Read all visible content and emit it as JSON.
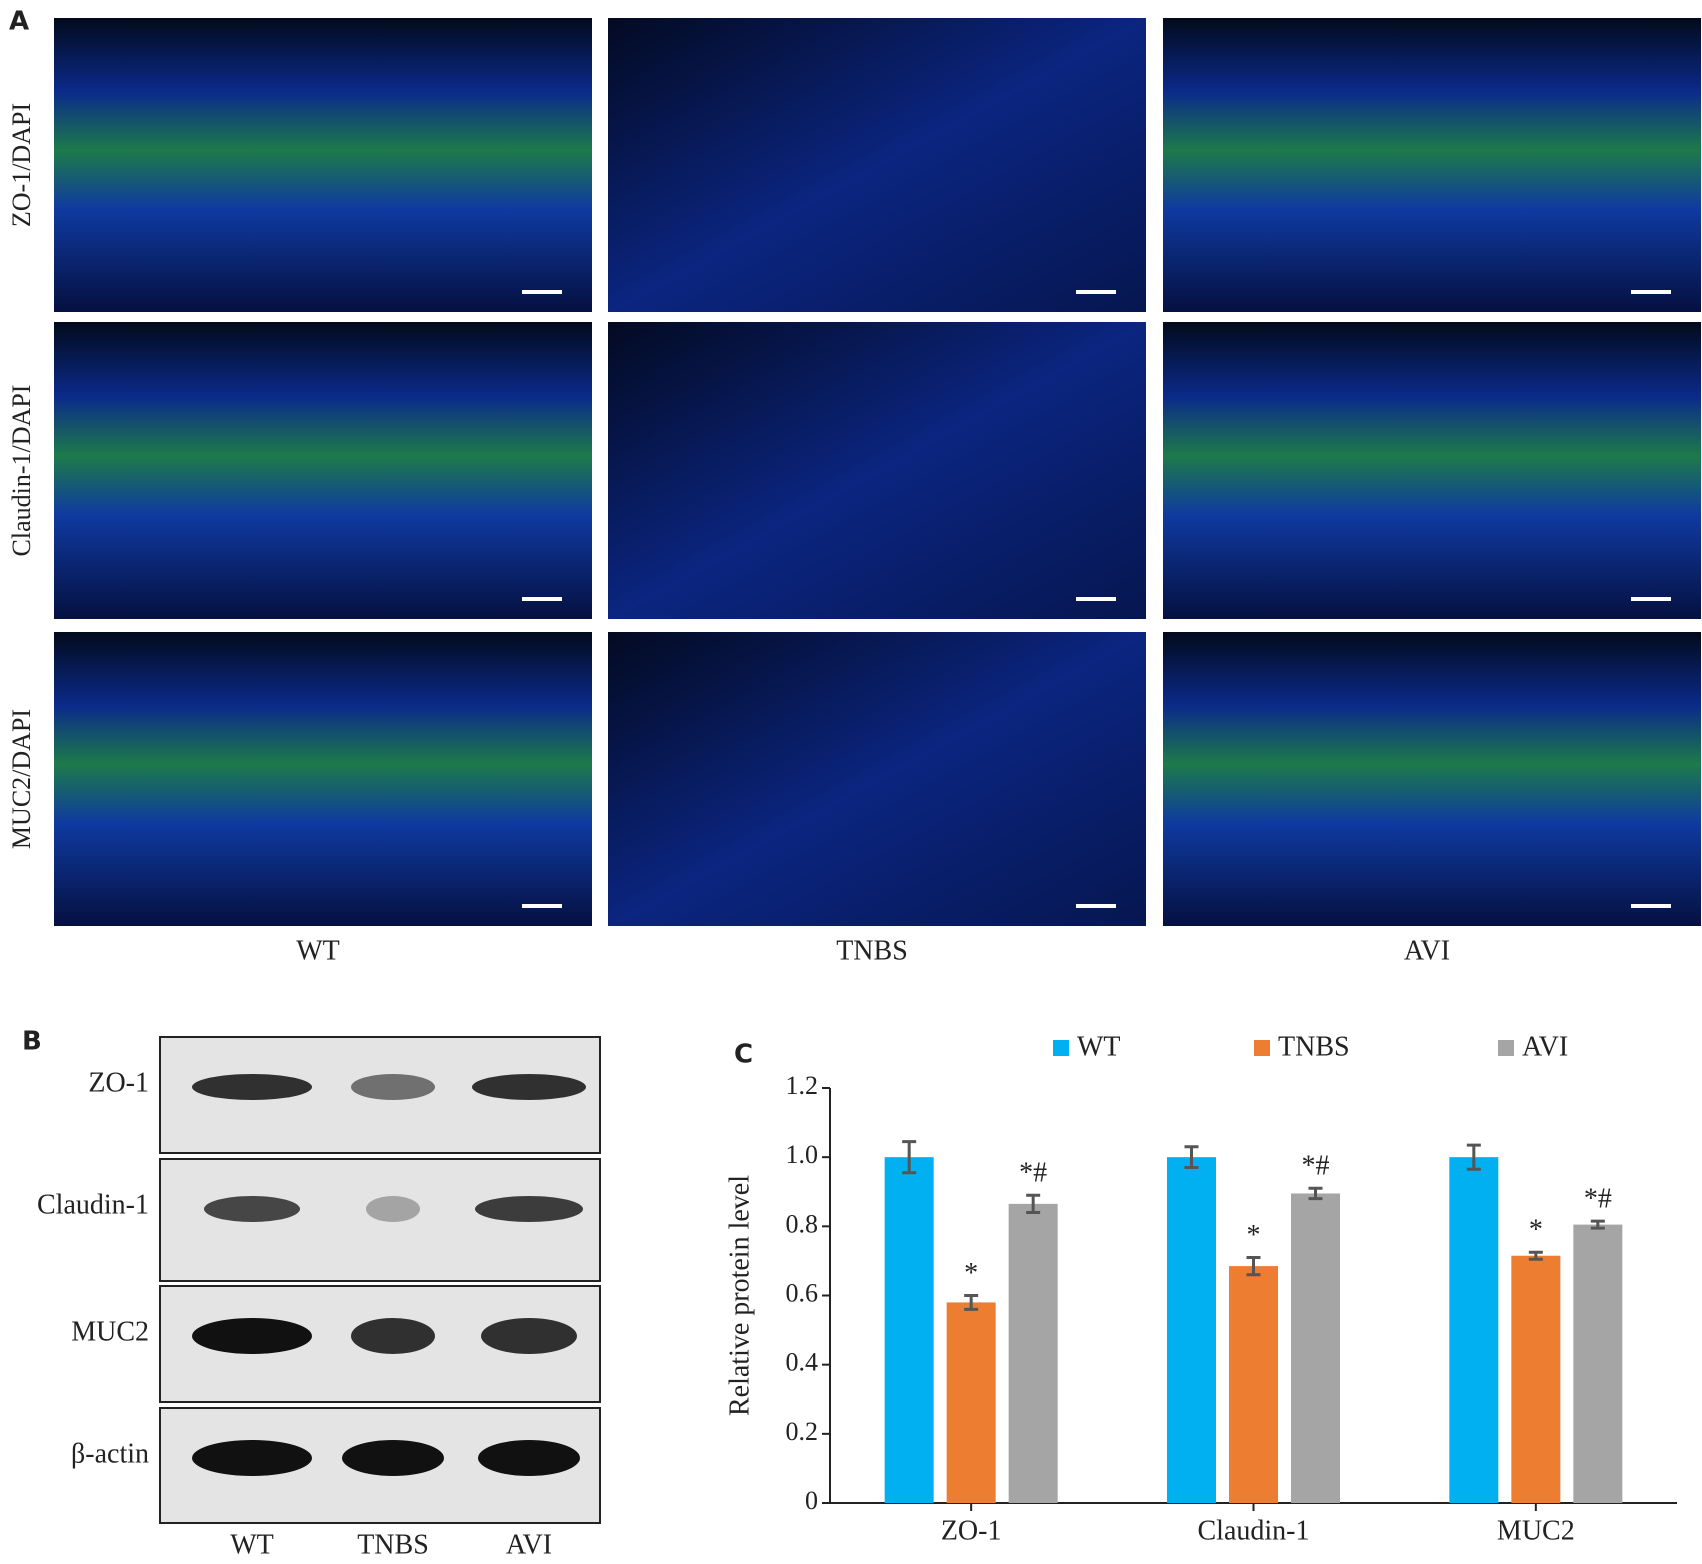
{
  "panel_a": {
    "label": "A",
    "row_labels": [
      "ZO-1/DAPI",
      "Claudin-1/DAPI",
      "MUC2/DAPI"
    ],
    "column_labels": [
      "WT",
      "TNBS",
      "AVI"
    ]
  },
  "panel_b": {
    "label": "B",
    "row_labels": [
      "ZO-1",
      "Claudin-1",
      "MUC2",
      "β-actin"
    ],
    "column_labels": [
      "WT",
      "TNBS",
      "AVI"
    ]
  },
  "chart_data": {
    "type": "bar",
    "panel_label": "C",
    "y_label": "Relative protein level",
    "categories": [
      "ZO-1",
      "Claudin-1",
      "MUC2"
    ],
    "series": [
      {
        "name": "WT",
        "color": "#00b0f0",
        "values": [
          1.0,
          1.0,
          1.0
        ],
        "errors": [
          0.045,
          0.03,
          0.035
        ],
        "annotations": [
          null,
          null,
          null
        ]
      },
      {
        "name": "TNBS",
        "color": "#ed7d31",
        "values": [
          0.58,
          0.685,
          0.715
        ],
        "errors": [
          0.02,
          0.025,
          0.01
        ],
        "annotations": [
          "*",
          "*",
          "*"
        ]
      },
      {
        "name": "AVI",
        "color": "#a5a5a5",
        "values": [
          0.865,
          0.895,
          0.805
        ],
        "errors": [
          0.025,
          0.015,
          0.01
        ],
        "annotations": [
          "*#",
          "*#",
          "*#"
        ]
      }
    ],
    "ylim": [
      0,
      1.2
    ],
    "yticks": [
      0,
      0.2,
      0.4,
      0.6,
      0.8,
      {
        "value": 1,
        "label": "1.0"
      },
      1.2
    ]
  }
}
